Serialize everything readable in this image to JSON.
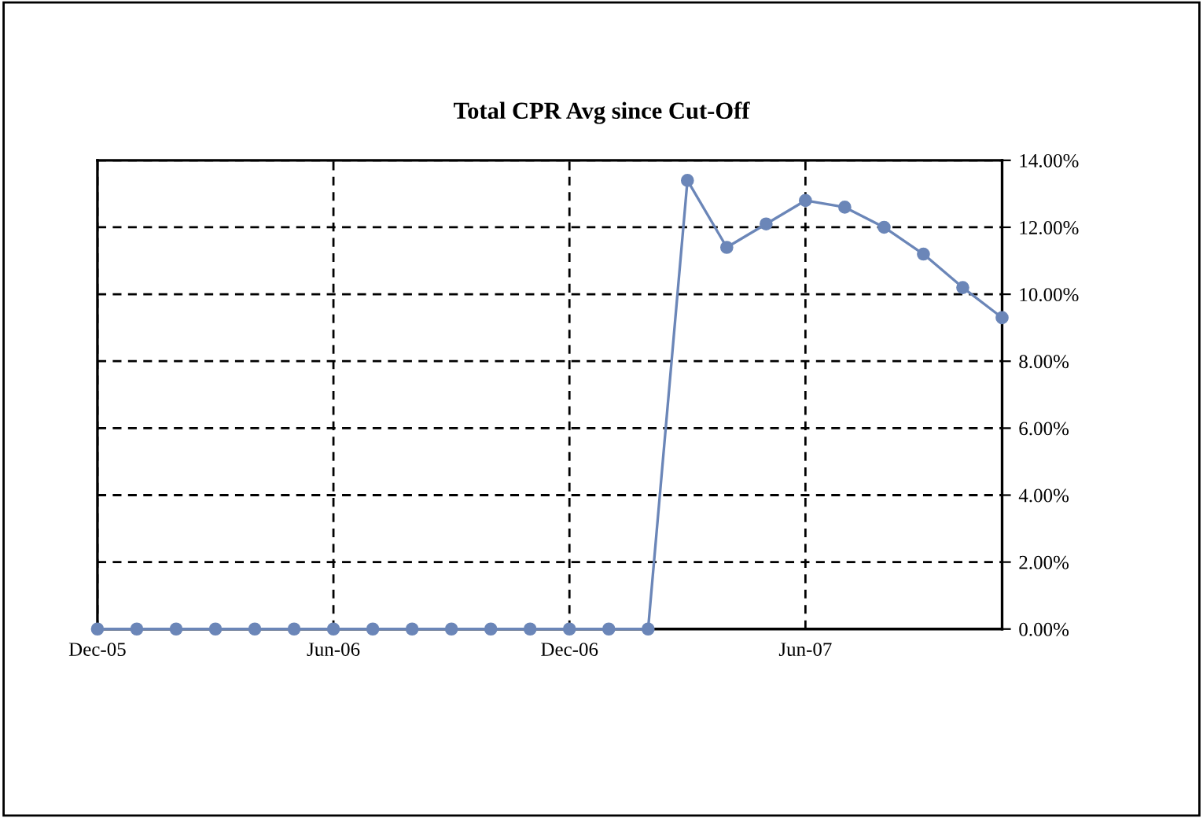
{
  "chart_data": {
    "type": "line",
    "title": "Total CPR Avg since Cut-Off",
    "categories": [
      "Dec-05",
      null,
      null,
      null,
      null,
      null,
      "Jun-06",
      null,
      null,
      null,
      null,
      null,
      "Dec-06",
      null,
      null,
      null,
      null,
      null,
      "Jun-07",
      null,
      null,
      null,
      null,
      null
    ],
    "series": [
      {
        "color": "#6b86b8",
        "values": [
          0,
          0,
          0,
          0,
          0,
          0,
          0,
          0,
          0,
          0,
          0,
          0,
          0,
          0,
          0,
          13.4,
          11.4,
          12.1,
          12.8,
          12.6,
          12.0,
          11.2,
          10.2,
          9.3
        ]
      }
    ],
    "ylim": [
      0,
      14
    ],
    "yticks": [
      {
        "value": 0,
        "label": "0.00%"
      },
      {
        "value": 2,
        "label": "2.00%"
      },
      {
        "value": 4,
        "label": "4.00%"
      },
      {
        "value": 6,
        "label": "6.00%"
      },
      {
        "value": 8,
        "label": "8.00%"
      },
      {
        "value": 10,
        "label": "10.00%"
      },
      {
        "value": 12,
        "label": "12.00%"
      },
      {
        "value": 14,
        "label": "14.00%"
      }
    ],
    "grid": true,
    "marker": "circle",
    "line_style": "solid",
    "legend": false
  }
}
